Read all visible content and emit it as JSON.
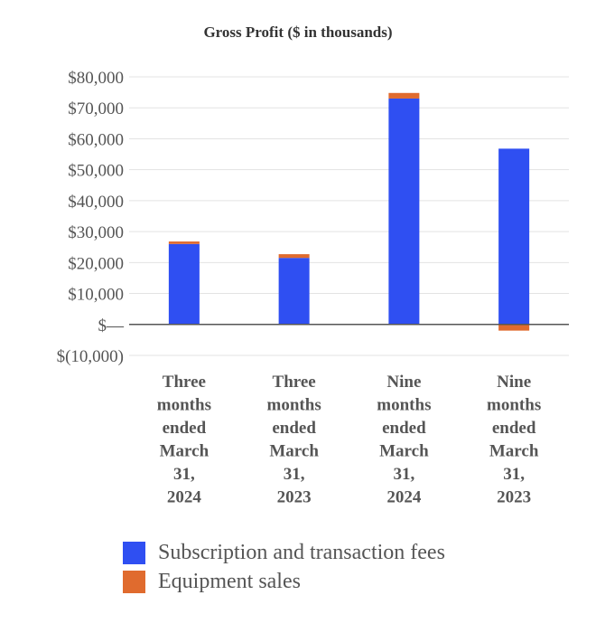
{
  "chart_data": {
    "type": "bar",
    "stacked": true,
    "title": "Gross Profit ($ in thousands)",
    "categories": [
      [
        "Three",
        "months",
        "ended",
        "March",
        "31,",
        "2024"
      ],
      [
        "Three",
        "months",
        "ended",
        "March",
        "31,",
        "2023"
      ],
      [
        "Nine",
        "months",
        "ended",
        "March",
        "31,",
        "2024"
      ],
      [
        "Nine",
        "months",
        "ended",
        "March",
        "31,",
        "2023"
      ]
    ],
    "series": [
      {
        "name": "Subscription and transaction fees",
        "color": "#2f4ff2",
        "values": [
          26000,
          21500,
          73000,
          56800
        ]
      },
      {
        "name": "Equipment sales",
        "color": "#e06b2e",
        "values": [
          800,
          1200,
          1800,
          -2000
        ]
      }
    ],
    "yticks": [
      {
        "value": 80000,
        "label": "$80,000"
      },
      {
        "value": 70000,
        "label": "$70,000"
      },
      {
        "value": 60000,
        "label": "$60,000"
      },
      {
        "value": 50000,
        "label": "$50,000"
      },
      {
        "value": 40000,
        "label": "$40,000"
      },
      {
        "value": 30000,
        "label": "$30,000"
      },
      {
        "value": 20000,
        "label": "$20,000"
      },
      {
        "value": 10000,
        "label": "$10,000"
      },
      {
        "value": 0,
        "label": "$—"
      },
      {
        "value": -10000,
        "label": "$(10,000)"
      }
    ],
    "ylim": [
      -10000,
      80000
    ],
    "grid": true,
    "legend": "bottom"
  }
}
